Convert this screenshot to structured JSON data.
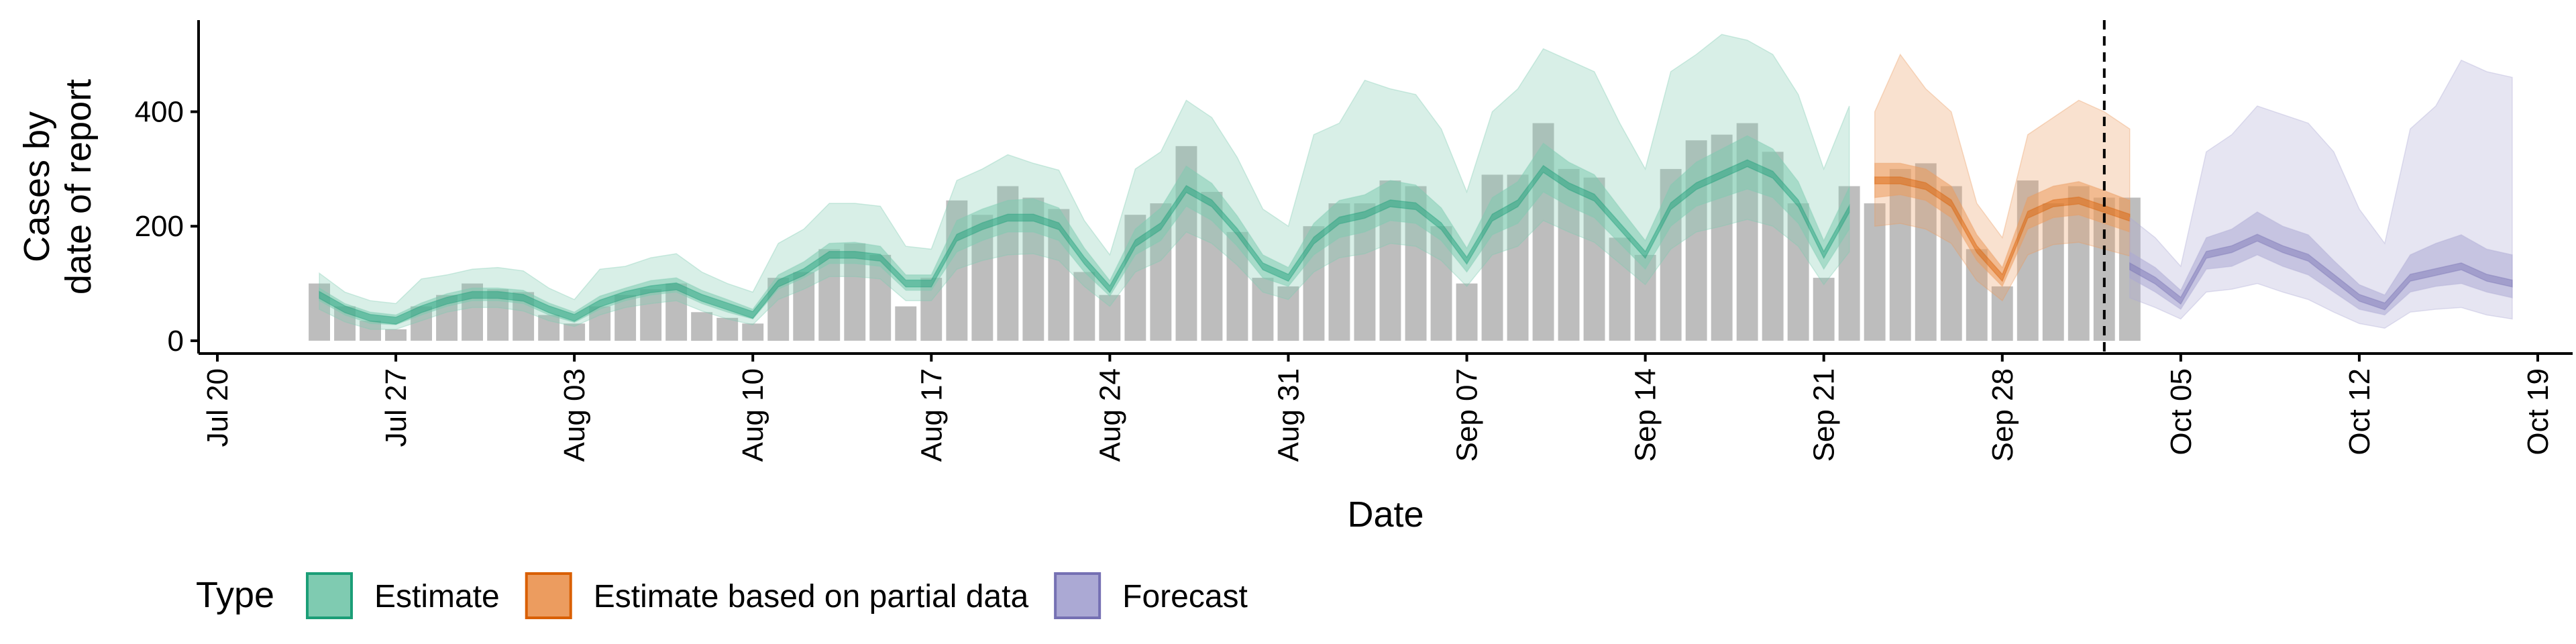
{
  "chart_data": {
    "type": "area",
    "title": "",
    "xlabel": "Date",
    "ylabel_lines": [
      "Cases by",
      "date of report"
    ],
    "x_axis": {
      "type": "date",
      "range": [
        "2020-07-20",
        "2020-10-19"
      ],
      "tick_dates": [
        "2020-07-20",
        "2020-07-27",
        "2020-08-03",
        "2020-08-10",
        "2020-08-17",
        "2020-08-24",
        "2020-08-31",
        "2020-09-07",
        "2020-09-14",
        "2020-09-21",
        "2020-09-28",
        "2020-10-05",
        "2020-10-12",
        "2020-10-19"
      ],
      "tick_labels": [
        "Jul 20",
        "Jul 27",
        "Aug 03",
        "Aug 10",
        "Aug 17",
        "Aug 24",
        "Aug 31",
        "Sep 07",
        "Sep 14",
        "Sep 21",
        "Sep 28",
        "Oct 05",
        "Oct 12",
        "Oct 19"
      ]
    },
    "y_axis": {
      "range": [
        -20,
        560
      ],
      "ticks": [
        0,
        200,
        400
      ],
      "tick_labels": [
        "0",
        "200",
        "400"
      ]
    },
    "grid": false,
    "vline_date": "2020-10-02",
    "bar_color": "#bdbdbd",
    "reported_cases": {
      "start_date": "2020-07-24",
      "values": [
        100,
        60,
        35,
        20,
        60,
        80,
        100,
        90,
        85,
        45,
        30,
        60,
        80,
        90,
        100,
        50,
        40,
        30,
        110,
        120,
        160,
        170,
        150,
        60,
        110,
        245,
        220,
        270,
        250,
        230,
        120,
        80,
        220,
        240,
        340,
        260,
        190,
        110,
        95,
        200,
        240,
        240,
        280,
        270,
        200,
        100,
        290,
        290,
        380,
        300,
        285,
        180,
        150,
        300,
        350,
        360,
        380,
        330,
        240,
        110,
        270,
        240,
        300,
        310,
        270,
        160,
        95,
        280,
        240,
        270,
        250,
        250
      ]
    },
    "series": [
      {
        "name": "Estimate",
        "color": "#1b9e77",
        "fill": "#7fcbb1",
        "start_date": "2020-07-24",
        "median": [
          80,
          55,
          40,
          35,
          55,
          70,
          80,
          80,
          75,
          55,
          40,
          65,
          80,
          90,
          95,
          75,
          60,
          45,
          100,
          120,
          150,
          150,
          145,
          100,
          100,
          180,
          200,
          215,
          215,
          200,
          140,
          90,
          170,
          200,
          265,
          240,
          190,
          130,
          110,
          175,
          210,
          220,
          240,
          235,
          200,
          140,
          215,
          240,
          300,
          270,
          250,
          200,
          150,
          235,
          270,
          290,
          310,
          290,
          240,
          150,
          230
        ],
        "inner_lower": [
          70,
          45,
          30,
          28,
          45,
          60,
          70,
          70,
          65,
          45,
          32,
          55,
          70,
          80,
          85,
          65,
          50,
          38,
          90,
          110,
          135,
          135,
          130,
          88,
          88,
          155,
          175,
          190,
          190,
          175,
          120,
          78,
          150,
          175,
          235,
          210,
          165,
          110,
          95,
          150,
          180,
          190,
          210,
          205,
          175,
          120,
          185,
          205,
          260,
          235,
          215,
          170,
          125,
          200,
          235,
          250,
          265,
          250,
          205,
          125,
          195
        ],
        "inner_upper": [
          92,
          65,
          50,
          45,
          66,
          82,
          92,
          92,
          88,
          66,
          50,
          78,
          92,
          105,
          110,
          88,
          72,
          55,
          115,
          138,
          170,
          172,
          165,
          115,
          115,
          210,
          230,
          245,
          248,
          232,
          162,
          105,
          195,
          232,
          305,
          275,
          218,
          150,
          128,
          205,
          245,
          255,
          280,
          272,
          232,
          162,
          250,
          278,
          345,
          312,
          290,
          232,
          175,
          272,
          312,
          335,
          358,
          335,
          278,
          175,
          268
        ],
        "outer_lower": [
          55,
          33,
          20,
          20,
          35,
          50,
          58,
          58,
          52,
          35,
          25,
          45,
          58,
          65,
          70,
          52,
          38,
          28,
          72,
          90,
          112,
          112,
          108,
          70,
          70,
          125,
          140,
          150,
          152,
          140,
          95,
          60,
          120,
          140,
          190,
          170,
          132,
          85,
          72,
          120,
          145,
          152,
          170,
          165,
          140,
          95,
          150,
          165,
          210,
          190,
          172,
          135,
          98,
          160,
          190,
          200,
          212,
          200,
          165,
          98,
          155
        ],
        "outer_upper": [
          118,
          85,
          70,
          65,
          108,
          115,
          125,
          128,
          122,
          92,
          72,
          125,
          130,
          145,
          152,
          120,
          100,
          85,
          170,
          195,
          240,
          240,
          235,
          165,
          160,
          280,
          300,
          325,
          310,
          298,
          210,
          150,
          300,
          330,
          420,
          390,
          320,
          230,
          200,
          360,
          380,
          455,
          440,
          430,
          370,
          260,
          400,
          440,
          510,
          490,
          470,
          380,
          300,
          470,
          500,
          535,
          525,
          500,
          430,
          300,
          410
        ]
      },
      {
        "name": "Estimate based on partial data",
        "color": "#d95f02",
        "fill": "#ec9c5f",
        "start_date": "2020-09-23",
        "median": [
          280,
          280,
          270,
          240,
          160,
          110,
          220,
          240,
          245,
          230,
          215
        ],
        "inner_lower": [
          250,
          255,
          245,
          215,
          140,
          95,
          195,
          215,
          220,
          205,
          190
        ],
        "inner_upper": [
          310,
          310,
          300,
          270,
          185,
          128,
          250,
          270,
          278,
          262,
          245
        ],
        "outer_lower": [
          200,
          205,
          195,
          170,
          105,
          70,
          150,
          168,
          172,
          160,
          148
        ],
        "outer_upper": [
          400,
          500,
          440,
          400,
          240,
          180,
          360,
          390,
          420,
          400,
          370
        ]
      },
      {
        "name": "Forecast",
        "color": "#7570b3",
        "fill": "#aba9d4",
        "start_date": "2020-10-03",
        "median": [
          130,
          105,
          70,
          150,
          160,
          180,
          160,
          145,
          110,
          75,
          60,
          110,
          120,
          130,
          110,
          100
        ],
        "inner_lower": [
          110,
          85,
          55,
          125,
          130,
          150,
          130,
          115,
          85,
          55,
          45,
          85,
          95,
          100,
          85,
          75
        ],
        "inner_upper": [
          155,
          128,
          88,
          180,
          195,
          225,
          200,
          185,
          140,
          98,
          80,
          150,
          170,
          185,
          160,
          150
        ],
        "outer_lower": [
          75,
          58,
          38,
          85,
          90,
          100,
          85,
          72,
          50,
          30,
          22,
          50,
          55,
          58,
          45,
          38
        ],
        "outer_upper": [
          215,
          180,
          130,
          330,
          360,
          410,
          395,
          380,
          330,
          230,
          170,
          370,
          410,
          490,
          470,
          460
        ]
      }
    ],
    "legend": {
      "title": "Type",
      "position": "bottom-left",
      "entries": [
        {
          "label": "Estimate",
          "fill": "#7fcbb1",
          "stroke": "#1b9e77"
        },
        {
          "label": "Estimate based on partial data",
          "fill": "#ec9c5f",
          "stroke": "#d95f02"
        },
        {
          "label": "Forecast",
          "fill": "#aba9d4",
          "stroke": "#7570b3"
        }
      ]
    }
  }
}
